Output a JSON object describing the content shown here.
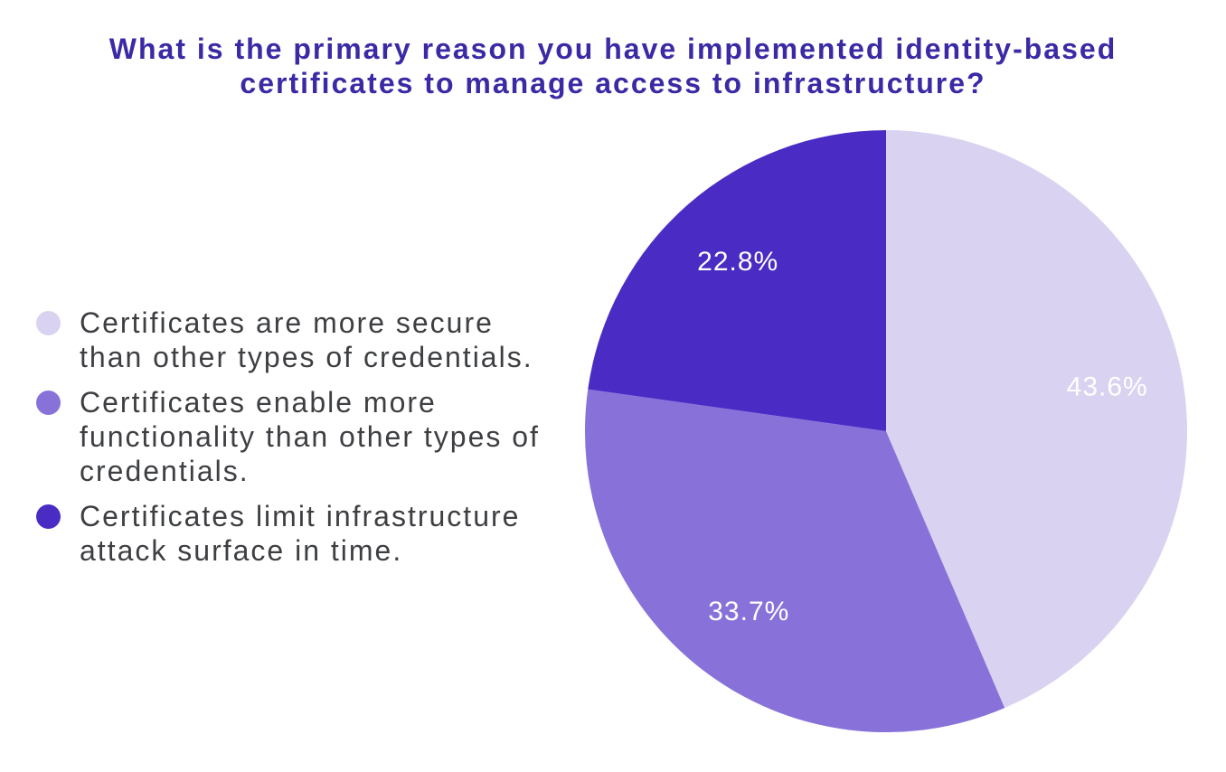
{
  "page": {
    "background": "#ffffff"
  },
  "chart_data": {
    "type": "pie",
    "title": "What is the primary reason you have implemented identity-based certificates to manage access to infrastructure?",
    "title_color": "#3a2aa5",
    "legend_position": "left",
    "legend_text_color": "#3d3f42",
    "categories": [
      "Certificates are more secure than other types of credentials.",
      "Certificates enable more functionality than other types of credentials.",
      "Certificates limit infrastructure attack surface in time."
    ],
    "values": [
      43.6,
      33.7,
      22.8
    ],
    "value_labels": [
      "43.6%",
      "33.7%",
      "22.8%"
    ],
    "colors": [
      "#d9d3f1",
      "#8872da",
      "#4a2cc4"
    ],
    "label_color": "#ffffff",
    "unit": "%",
    "start_angle_deg": 0,
    "direction": "clockwise",
    "labels_inside": true
  }
}
